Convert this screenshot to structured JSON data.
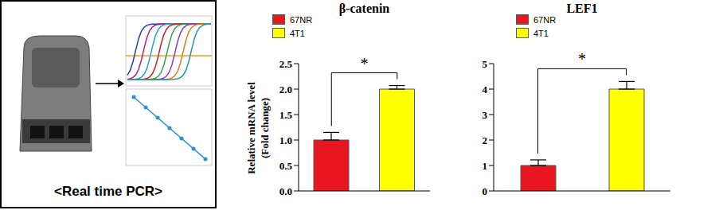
{
  "illustration": {
    "label": "<Real time PCR>"
  },
  "chart_data": [
    {
      "type": "bar",
      "title": "β-catenin",
      "ylabel": "Relative mRNA level (Fold change)",
      "categories": [
        "67NR",
        "4T1"
      ],
      "values": [
        1.0,
        2.0
      ],
      "errors": [
        0.15,
        0.07
      ],
      "colors": [
        "#e8161e",
        "#ffff00"
      ],
      "ylim": [
        0,
        2.5
      ],
      "yticks": [
        {
          "value": 0,
          "label": "0.0"
        },
        {
          "value": 0.5,
          "label": "0.5"
        },
        {
          "value": 1,
          "label": "1.0"
        },
        {
          "value": 1.5,
          "label": "1.5"
        },
        {
          "value": 2,
          "label": "2.0"
        },
        {
          "value": 2.5,
          "label": "2.5"
        }
      ],
      "legend": "top-left",
      "tick_labels": "y",
      "annotations": [
        {
          "text": "*",
          "between": [
            "67NR",
            "4T1"
          ]
        }
      ]
    },
    {
      "type": "bar",
      "title": "LEF1",
      "categories": [
        "67NR",
        "4T1"
      ],
      "values": [
        1.0,
        4.0
      ],
      "errors": [
        0.22,
        0.3
      ],
      "colors": [
        "#e8161e",
        "#ffff00"
      ],
      "ylim": [
        0,
        5
      ],
      "yticks": [
        0,
        1,
        2,
        3,
        4,
        5
      ],
      "legend": "top-left",
      "tick_labels": "y",
      "annotations": [
        {
          "text": "*",
          "between": [
            "67NR",
            "4T1"
          ]
        }
      ]
    }
  ]
}
